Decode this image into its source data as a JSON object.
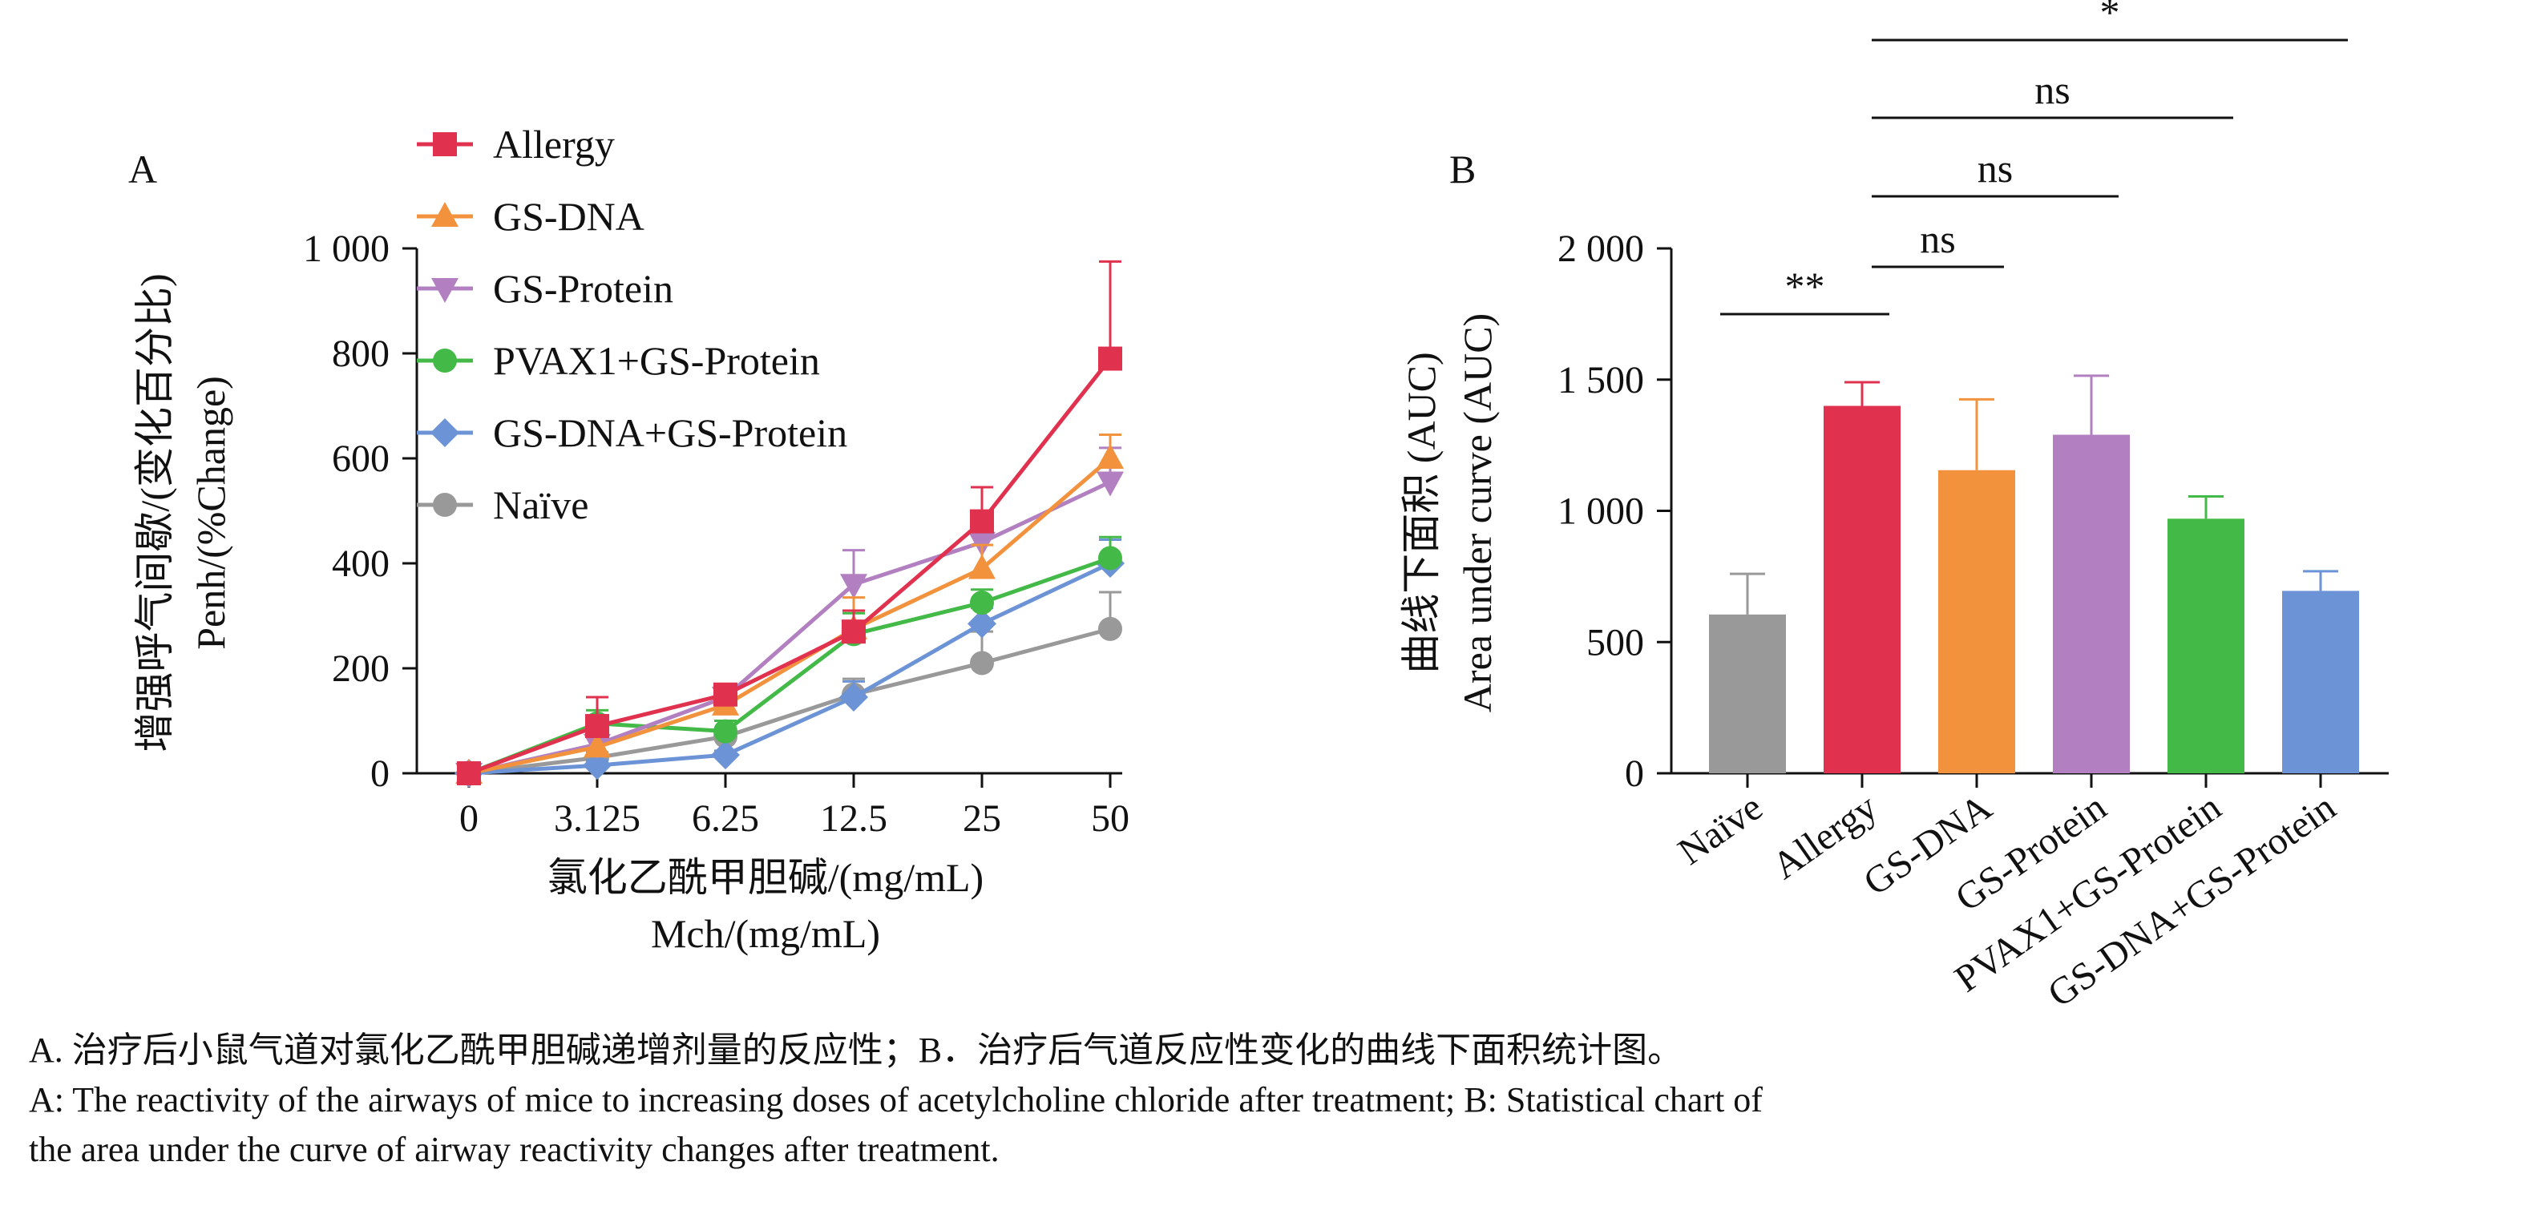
{
  "panel_a": {
    "label": "A",
    "ylabel_cn": "增强呼气间歇/(变化百分比)",
    "ylabel_en": "Penh/(%Change)",
    "xlabel_cn": "氯化乙酰甲胆碱/(mg/mL)",
    "xlabel_en": "Mch/(mg/mL)"
  },
  "panel_b": {
    "label": "B",
    "ylabel_cn": "曲线下面积 (AUC)",
    "ylabel_en": "Area under curve (AUC)",
    "significance": [
      "**",
      "ns",
      "ns",
      "ns",
      "*"
    ]
  },
  "caption": {
    "line1": "A. 治疗后小鼠气道对氯化乙酰甲胆碱递增剂量的反应性；B．治疗后气道反应性变化的曲线下面积统计图。",
    "line2": "A: The reactivity of the airways of mice to increasing doses of acetylcholine chloride after treatment; B: Statistical chart of",
    "line3": "the area under the curve of airway reactivity changes after treatment."
  },
  "chart_data": [
    {
      "type": "line",
      "categories": [
        "0",
        "3.125",
        "6.25",
        "12.5",
        "25",
        "50"
      ],
      "ylim": [
        0,
        1000
      ],
      "yticks": [
        "0",
        "200",
        "400",
        "600",
        "800",
        "1 000"
      ],
      "legend_position": "top-left",
      "series": [
        {
          "name": "Allergy",
          "color": "#e0324f",
          "marker": "square",
          "values": [
            0,
            90,
            150,
            270,
            480,
            790
          ],
          "errors": [
            0,
            55,
            15,
            40,
            65,
            185
          ]
        },
        {
          "name": "GS-DNA",
          "color": "#f3923d",
          "marker": "triangle-up",
          "values": [
            0,
            50,
            130,
            275,
            390,
            600
          ],
          "errors": [
            0,
            30,
            25,
            60,
            45,
            45
          ]
        },
        {
          "name": "GS-Protein",
          "color": "#b280c0",
          "marker": "triangle-down",
          "values": [
            0,
            55,
            145,
            360,
            440,
            555
          ],
          "errors": [
            0,
            30,
            20,
            65,
            45,
            65
          ]
        },
        {
          "name": "PVAX1+GS-Protein",
          "color": "#43b947",
          "marker": "circle",
          "values": [
            0,
            95,
            80,
            265,
            325,
            410
          ],
          "errors": [
            0,
            25,
            20,
            40,
            25,
            40
          ]
        },
        {
          "name": "GS-DNA+GS-Protein",
          "color": "#6b93d6",
          "marker": "diamond",
          "values": [
            0,
            15,
            35,
            145,
            285,
            400
          ],
          "errors": [
            0,
            10,
            8,
            30,
            30,
            45
          ]
        },
        {
          "name": "Naïve",
          "color": "#999999",
          "marker": "circle",
          "values": [
            0,
            30,
            70,
            150,
            210,
            275
          ],
          "errors": [
            0,
            10,
            15,
            30,
            60,
            70
          ]
        }
      ]
    },
    {
      "type": "bar",
      "categories": [
        "Naïve",
        "Allergy",
        "GS-DNA",
        "GS-Protein",
        "PVAX1+GS-Protein",
        "GS-DNA+GS-Protein"
      ],
      "values": [
        605,
        1400,
        1155,
        1290,
        970,
        695
      ],
      "errors": [
        155,
        90,
        270,
        225,
        85,
        75
      ],
      "colors": [
        "#999999",
        "#e0324f",
        "#f3923d",
        "#b280c0",
        "#43b947",
        "#6b93d6"
      ],
      "ylim": [
        0,
        2000
      ],
      "yticks": [
        "0",
        "500",
        "1 000",
        "1 500",
        "2 000"
      ],
      "comparisons": [
        {
          "a": 0,
          "b": 1,
          "label": "**"
        },
        {
          "a": 1,
          "b": 2,
          "label": "ns"
        },
        {
          "a": 1,
          "b": 3,
          "label": "ns"
        },
        {
          "a": 1,
          "b": 4,
          "label": "ns"
        },
        {
          "a": 1,
          "b": 5,
          "label": "*"
        }
      ]
    }
  ]
}
